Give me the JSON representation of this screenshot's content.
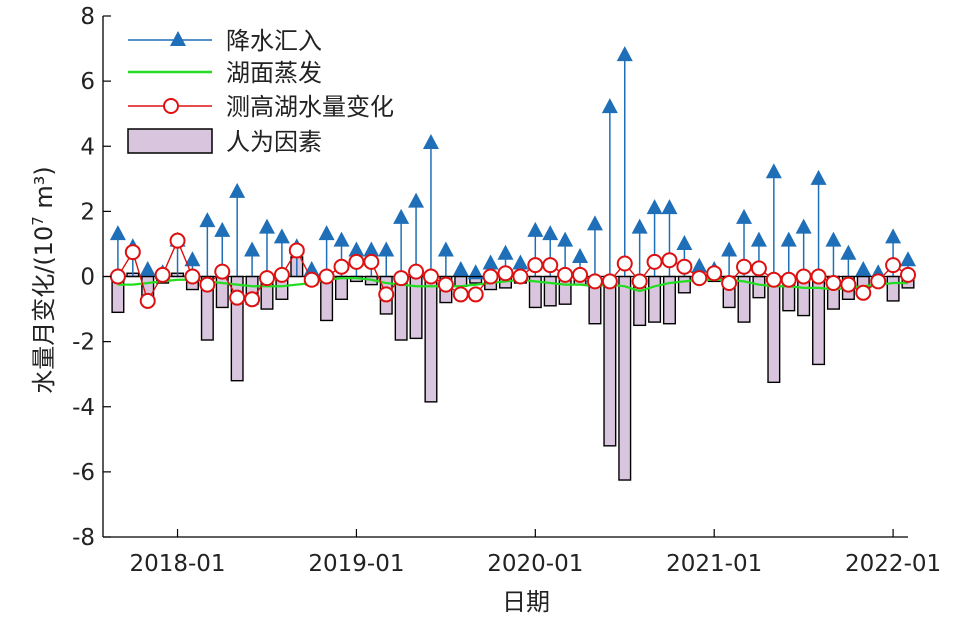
{
  "chart_data": {
    "type": "bar",
    "xlabel": "日期",
    "ylabel": "水量月变化/(10",
    "ylabel_sup": "7",
    "ylabel_tail": " m³)",
    "ylim": [
      -8,
      8
    ],
    "yticks": [
      "-8",
      "-6",
      "-4",
      "-2",
      "0",
      "2",
      "4",
      "6",
      "8"
    ],
    "xlim": [
      "2017-08",
      "2022-02"
    ],
    "xticks": [
      {
        "date": "2018-01",
        "label": "2018-01"
      },
      {
        "date": "2019-01",
        "label": "2019-01"
      },
      {
        "date": "2020-01",
        "label": "2020-01"
      },
      {
        "date": "2021-01",
        "label": "2021-01"
      },
      {
        "date": "2022-01",
        "label": "2022-01"
      }
    ],
    "legend_position": "top-left",
    "months": [
      "2017-09",
      "2017-10",
      "2017-11",
      "2017-12",
      "2018-01",
      "2018-02",
      "2018-03",
      "2018-04",
      "2018-05",
      "2018-06",
      "2018-07",
      "2018-08",
      "2018-09",
      "2018-10",
      "2018-11",
      "2018-12",
      "2019-01",
      "2019-02",
      "2019-03",
      "2019-04",
      "2019-05",
      "2019-06",
      "2019-07",
      "2019-08",
      "2019-09",
      "2019-10",
      "2019-11",
      "2019-12",
      "2020-01",
      "2020-02",
      "2020-03",
      "2020-04",
      "2020-05",
      "2020-06",
      "2020-07",
      "2020-08",
      "2020-09",
      "2020-10",
      "2020-11",
      "2020-12",
      "2021-01",
      "2021-02",
      "2021-03",
      "2021-04",
      "2021-05",
      "2021-06",
      "2021-07",
      "2021-08",
      "2021-09",
      "2021-10",
      "2021-11",
      "2021-12",
      "2022-01",
      "2022-02"
    ],
    "series": [
      {
        "name": "降水汇入",
        "kind": "stem",
        "color": "#1f6fb8",
        "values": [
          1.3,
          0.9,
          0.2,
          0.1,
          1.1,
          0.5,
          1.7,
          1.4,
          2.6,
          0.8,
          1.5,
          1.2,
          0.9,
          0.2,
          1.3,
          1.1,
          0.8,
          0.8,
          0.8,
          1.8,
          2.3,
          4.1,
          0.8,
          0.2,
          0.1,
          0.4,
          0.7,
          0.4,
          1.4,
          1.3,
          1.1,
          0.6,
          1.6,
          5.2,
          6.8,
          1.5,
          2.1,
          2.1,
          1.0,
          0.3,
          0.2,
          0.8,
          1.8,
          1.1,
          3.2,
          1.1,
          1.5,
          3.0,
          1.1,
          0.7,
          0.2,
          0.1,
          1.2,
          0.5
        ]
      },
      {
        "name": "湖面蒸发",
        "kind": "line",
        "color": "#22dd22",
        "values": [
          -0.25,
          -0.25,
          -0.2,
          -0.15,
          -0.1,
          -0.1,
          -0.15,
          -0.2,
          -0.25,
          -0.3,
          -0.3,
          -0.3,
          -0.25,
          -0.2,
          -0.1,
          -0.05,
          -0.05,
          -0.1,
          -0.2,
          -0.25,
          -0.3,
          -0.3,
          -0.3,
          -0.3,
          -0.25,
          -0.2,
          -0.15,
          -0.1,
          -0.15,
          -0.2,
          -0.25,
          -0.25,
          -0.3,
          -0.25,
          -0.3,
          -0.45,
          -0.3,
          -0.2,
          -0.15,
          -0.1,
          -0.1,
          -0.1,
          -0.15,
          -0.25,
          -0.3,
          -0.3,
          -0.35,
          -0.35,
          -0.4,
          -0.35,
          -0.3,
          -0.25,
          -0.2,
          -0.2
        ]
      },
      {
        "name": "测高湖水量变化",
        "kind": "line-marker",
        "color": "#dd1111",
        "values": [
          0.0,
          0.75,
          -0.75,
          0.05,
          1.1,
          0.0,
          -0.25,
          0.15,
          -0.65,
          -0.7,
          -0.05,
          0.05,
          0.8,
          -0.1,
          0.0,
          0.3,
          0.45,
          0.45,
          -0.55,
          -0.05,
          0.15,
          0.0,
          -0.25,
          -0.55,
          -0.55,
          0.0,
          0.1,
          0.0,
          0.35,
          0.35,
          0.05,
          0.05,
          -0.15,
          -0.15,
          0.4,
          -0.15,
          0.45,
          0.5,
          0.3,
          -0.05,
          0.1,
          -0.2,
          0.3,
          0.25,
          -0.1,
          -0.1,
          0.0,
          0.0,
          -0.2,
          -0.25,
          -0.5,
          -0.15,
          0.35,
          0.05
        ]
      },
      {
        "name": "人为因素",
        "kind": "bar",
        "color": "#d9c6de",
        "values": [
          -1.1,
          0.1,
          -0.8,
          -0.2,
          0.1,
          -0.4,
          -1.95,
          -0.95,
          -3.2,
          -0.85,
          -1.0,
          -0.7,
          0.6,
          -0.25,
          -1.35,
          -0.7,
          -0.15,
          -0.25,
          -1.15,
          -1.95,
          -1.9,
          -3.85,
          -0.8,
          -0.3,
          -0.2,
          -0.4,
          -0.35,
          -0.2,
          -0.95,
          -0.9,
          -0.85,
          -0.25,
          -1.45,
          -5.2,
          -6.25,
          -1.5,
          -1.4,
          -1.45,
          -0.5,
          -0.15,
          -0.15,
          -0.95,
          -1.4,
          -0.65,
          -3.25,
          -1.05,
          -1.2,
          -2.7,
          -1.0,
          -0.7,
          -0.55,
          -0.05,
          -0.75,
          -0.35
        ]
      }
    ]
  }
}
